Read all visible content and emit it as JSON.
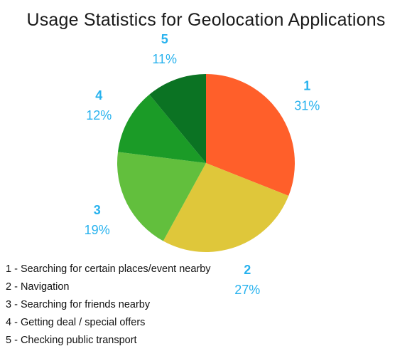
{
  "chart_data": {
    "type": "pie",
    "title": "Usage Statistics for Geolocation Applications",
    "slices": [
      {
        "label": "1",
        "value": 31,
        "value_label": "31%",
        "color": "#ff5f2a"
      },
      {
        "label": "2",
        "value": 27,
        "value_label": "27%",
        "color": "#dfc73a"
      },
      {
        "label": "3",
        "value": 19,
        "value_label": "19%",
        "color": "#62bf3d"
      },
      {
        "label": "4",
        "value": 12,
        "value_label": "12%",
        "color": "#1b9b27"
      },
      {
        "label": "5",
        "value": 11,
        "value_label": "11%",
        "color": "#0b7323"
      }
    ],
    "start_angle_deg": 0,
    "direction": "clockwise",
    "label_color": "#27b2ee",
    "legend": [
      "1 - Searching for certain places/event nearby",
      "2 - Navigation",
      "3 - Searching for friends nearby",
      "4 - Getting deal / special offers",
      "5 - Checking public transport"
    ],
    "legend_placement": "bottom-left"
  }
}
